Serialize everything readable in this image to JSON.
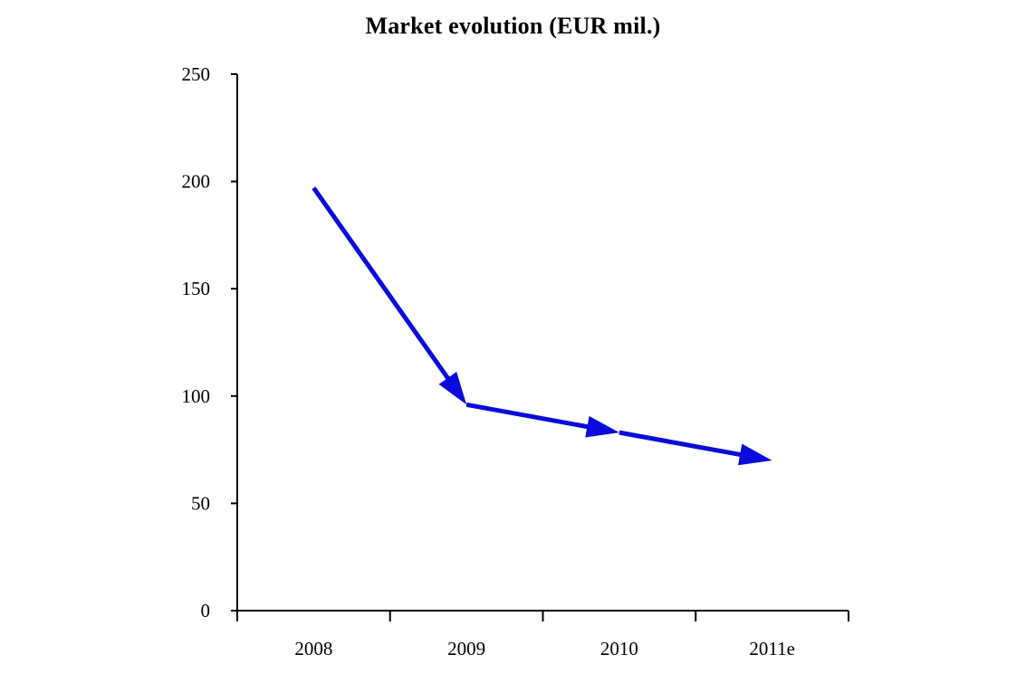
{
  "chart_data": {
    "type": "line",
    "title": "Market evolution (EUR mil.)",
    "xlabel": "",
    "ylabel": "",
    "categories": [
      "2008",
      "2009",
      "2010",
      "2011e"
    ],
    "series": [
      {
        "values": [
          197,
          96,
          83,
          70
        ]
      }
    ],
    "ylim": [
      0,
      250
    ],
    "yticks": [
      0,
      50,
      100,
      150,
      200,
      250
    ],
    "grid": false,
    "legend": "none",
    "style": {
      "line_color": "#0A0ADC",
      "axis_color": "#000000",
      "marker": "arrowheads"
    }
  }
}
